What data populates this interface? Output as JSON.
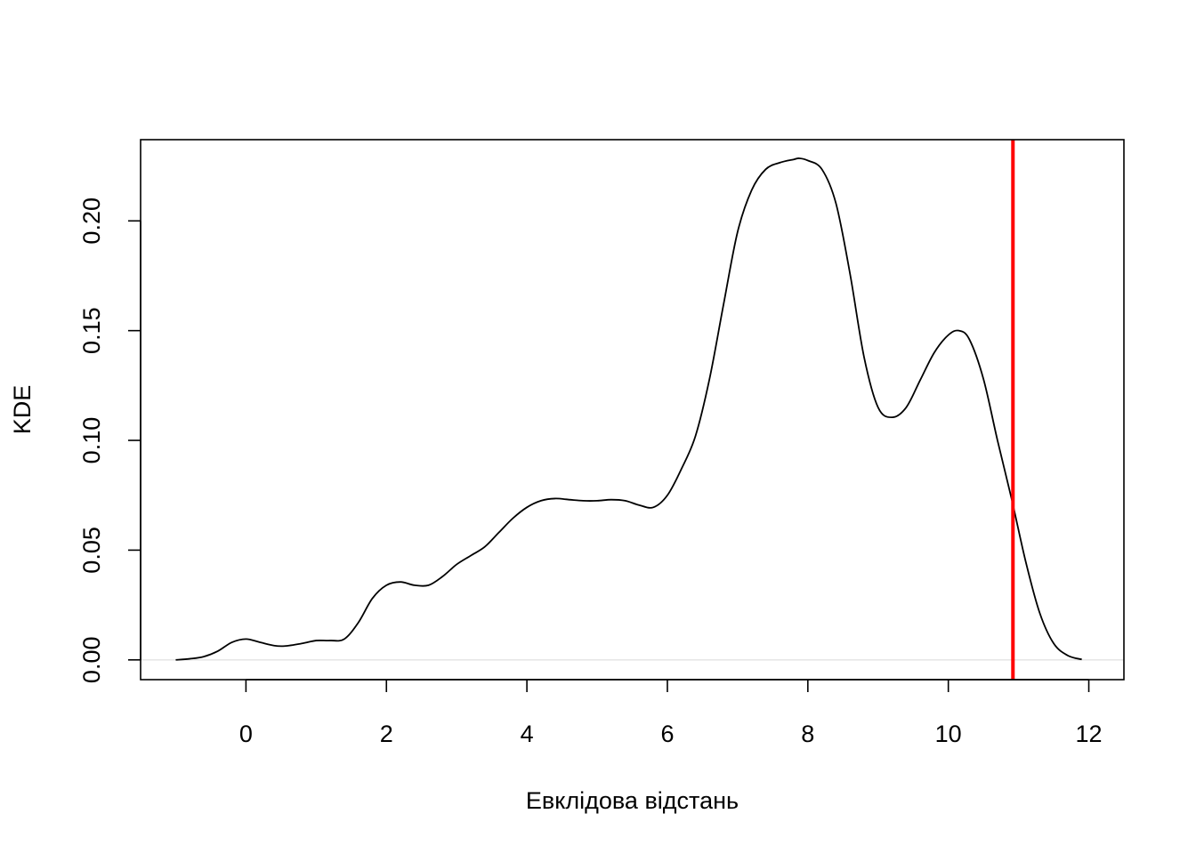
{
  "chart_data": {
    "type": "line",
    "title": "",
    "xlabel": "Евклідова відстань",
    "ylabel": "KDE",
    "xlim": [
      -1.5,
      12.5
    ],
    "ylim": [
      -0.009,
      0.237
    ],
    "xticks": [
      0,
      2,
      4,
      6,
      8,
      10,
      12
    ],
    "xtick_labels": [
      "0",
      "2",
      "4",
      "6",
      "8",
      "10",
      "12"
    ],
    "yticks": [
      0.0,
      0.05,
      0.1,
      0.15,
      0.2
    ],
    "ytick_labels": [
      "0.00",
      "0.05",
      "0.10",
      "0.15",
      "0.20"
    ],
    "grid": false,
    "baseline": {
      "y": 0,
      "color": "#e6e6e6"
    },
    "vline": {
      "x": 10.92,
      "color": "#ff0000"
    },
    "series": [
      {
        "color": "#000000",
        "x": [
          -1.0,
          -0.8,
          -0.6,
          -0.4,
          -0.2,
          0.0,
          0.2,
          0.4,
          0.55,
          0.8,
          1.0,
          1.2,
          1.4,
          1.6,
          1.8,
          2.0,
          2.2,
          2.4,
          2.6,
          2.8,
          3.0,
          3.2,
          3.4,
          3.6,
          3.8,
          4.0,
          4.2,
          4.4,
          4.6,
          4.8,
          5.0,
          5.2,
          5.4,
          5.6,
          5.8,
          6.0,
          6.2,
          6.4,
          6.6,
          6.8,
          7.0,
          7.2,
          7.4,
          7.6,
          7.8,
          7.88,
          8.0,
          8.2,
          8.4,
          8.6,
          8.8,
          9.0,
          9.2,
          9.4,
          9.6,
          9.8,
          10.0,
          10.15,
          10.3,
          10.5,
          10.7,
          10.9,
          11.1,
          11.3,
          11.5,
          11.7,
          11.9
        ],
        "y": [
          0.0,
          0.0005,
          0.0015,
          0.004,
          0.008,
          0.0095,
          0.008,
          0.0065,
          0.0063,
          0.0075,
          0.0088,
          0.0088,
          0.0095,
          0.017,
          0.028,
          0.034,
          0.0355,
          0.034,
          0.034,
          0.038,
          0.0435,
          0.0475,
          0.0515,
          0.058,
          0.0645,
          0.0695,
          0.0725,
          0.0735,
          0.073,
          0.0725,
          0.0725,
          0.073,
          0.0725,
          0.0705,
          0.0695,
          0.075,
          0.087,
          0.102,
          0.128,
          0.162,
          0.195,
          0.214,
          0.2235,
          0.2265,
          0.228,
          0.2285,
          0.2275,
          0.2235,
          0.208,
          0.176,
          0.138,
          0.115,
          0.1105,
          0.115,
          0.1275,
          0.14,
          0.148,
          0.15,
          0.146,
          0.128,
          0.1,
          0.0735,
          0.045,
          0.0215,
          0.0075,
          0.002,
          0.0002
        ]
      }
    ]
  }
}
